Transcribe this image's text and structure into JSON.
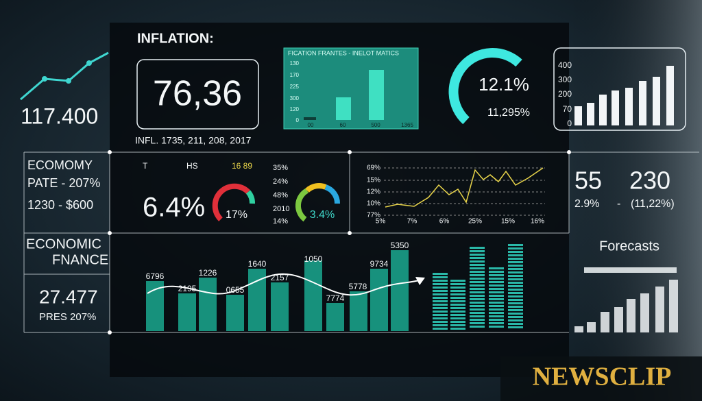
{
  "header": {
    "title": "INFLATION:",
    "headline_value": "76,36",
    "caption": "INFL. 1735, 211, 208, 2017"
  },
  "mini_bar_panel": {
    "title": "FICATION FRANTES  -  INELOT MATICS",
    "y_labels": [
      "130",
      "170",
      "225",
      "300",
      "120",
      "0"
    ],
    "x_labels": [
      "00",
      "60",
      "500",
      "1365"
    ]
  },
  "gauge_panel": {
    "value": "12.1%",
    "subvalue": "11,295%"
  },
  "white_bar_panel": {
    "y_labels": [
      "400",
      "300",
      "200",
      "70",
      "0"
    ]
  },
  "left_column": {
    "headline": "117.400",
    "economy": [
      "ECOMOMY",
      "PATE  -  207%",
      "1230  -  $600"
    ],
    "finance": [
      "ECONOMIC",
      "FNANCE"
    ],
    "stat": "27.477",
    "stat_note": "PRES 207%"
  },
  "middle_row": {
    "headers": [
      "T",
      "HS",
      "16 89"
    ],
    "value": "6.4%",
    "gauge_1": "17%",
    "list": [
      "35%",
      "24%",
      "48%",
      "2010",
      "14%"
    ],
    "gauge_2": "3.4%"
  },
  "line_panel": {
    "y_labels": [
      "69%",
      "15%",
      "12%",
      "10%",
      "77%"
    ],
    "x_labels": [
      "5%",
      "7%",
      "6%",
      "25%",
      "15%",
      "16%"
    ]
  },
  "summary": {
    "values": [
      "55",
      "230"
    ],
    "details": [
      "2.9%",
      "-",
      "(11,22%)"
    ]
  },
  "bar_labels": [
    "6796",
    "2195",
    "1226",
    "0655",
    "1640",
    "2157",
    "1050",
    "7774",
    "5778",
    "9734",
    "5350"
  ],
  "forecasts": {
    "title": "Forecasts"
  },
  "brand": {
    "name": "NEWSCLIP"
  }
}
